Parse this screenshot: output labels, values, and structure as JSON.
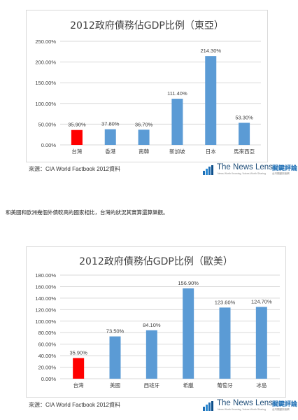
{
  "colors": {
    "highlight": "#ff0000",
    "bar": "#5b9bd5",
    "grid": "#d9d9d9"
  },
  "paragraph": "和美國和歐洲幾個外債較高的國家相比，台灣的狀況其實算還算樂觀。",
  "charts": [
    {
      "source": "來源：CIA World Factbook 2012資料",
      "logo": {
        "name": "The News Lens",
        "name_cn": "關鍵評論",
        "tagline": "News Worth Knowing, Voices Worth Sharing",
        "tagline_cn": "台灣關鍵評論網"
      }
    },
    {
      "source": "來源：CIA World Factbook 2012資料",
      "logo": {
        "name": "The News Lens",
        "name_cn": "關鍵評論",
        "tagline": "News Worth Knowing, Voices Worth Sharing",
        "tagline_cn": "台灣關鍵評論網"
      }
    }
  ],
  "chart_data": [
    {
      "type": "bar",
      "title": "2012政府債務佔GDP比例（東亞）",
      "categories": [
        "台灣",
        "香港",
        "南韓",
        "新加坡",
        "日本",
        "馬來西亞"
      ],
      "values": [
        35.9,
        37.8,
        36.7,
        111.4,
        214.3,
        53.3
      ],
      "data_labels": [
        "35.90%",
        "37.80%",
        "36.70%",
        "111.40%",
        "214.30%",
        "53.30%"
      ],
      "highlight_index": 0,
      "ylim": [
        0,
        250
      ],
      "yticks": [
        "0.00%",
        "50.00%",
        "100.00%",
        "150.00%",
        "200.00%",
        "250.00%"
      ],
      "grid": true,
      "xlabel": "",
      "ylabel": ""
    },
    {
      "type": "bar",
      "title": "2012政府債務佔GDP比例（歐美）",
      "categories": [
        "台灣",
        "美國",
        "西班牙",
        "希臘",
        "葡萄牙",
        "冰島"
      ],
      "values": [
        35.9,
        73.5,
        84.1,
        156.9,
        123.6,
        124.7
      ],
      "data_labels": [
        "35.90%",
        "73.50%",
        "84.10%",
        "156.90%",
        "123.60%",
        "124.70%"
      ],
      "highlight_index": 0,
      "ylim": [
        0,
        180
      ],
      "yticks": [
        "0.00%",
        "20.00%",
        "40.00%",
        "60.00%",
        "80.00%",
        "100.00%",
        "120.00%",
        "140.00%",
        "160.00%",
        "180.00%"
      ],
      "grid": true,
      "xlabel": "",
      "ylabel": ""
    }
  ]
}
